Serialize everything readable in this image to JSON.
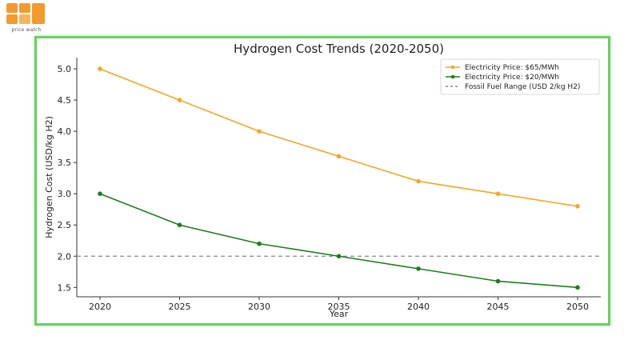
{
  "logo": {
    "text": "price watch",
    "color": "#f39a2e"
  },
  "chart_data": {
    "type": "line",
    "title": "Hydrogen Cost Trends (2020-2050)",
    "xlabel": "Year",
    "ylabel": "Hydrogen Cost (USD/kg H2)",
    "x": [
      2020,
      2025,
      2030,
      2035,
      2040,
      2045,
      2050
    ],
    "x_ticks": [
      "2020",
      "2025",
      "2030",
      "2035",
      "2040",
      "2045",
      "2050"
    ],
    "y_ticks": [
      "1.5",
      "2.0",
      "2.5",
      "3.0",
      "3.5",
      "4.0",
      "4.5",
      "5.0"
    ],
    "ylim": [
      1.35,
      5.18
    ],
    "series": [
      {
        "name": "Electricity Price: $65/MWh",
        "color": "#f5a623",
        "marker": "circle",
        "values": [
          5.0,
          4.5,
          4.0,
          3.6,
          3.2,
          3.0,
          2.8
        ]
      },
      {
        "name": "Electricity Price: $20/MWh",
        "color": "#1e7d1e",
        "marker": "circle",
        "values": [
          3.0,
          2.5,
          2.2,
          2.0,
          1.8,
          1.6,
          1.5
        ]
      }
    ],
    "reference_lines": [
      {
        "name": "Fossil Fuel Range (USD 2/kg H2)",
        "y": 2.0,
        "style": "dashed",
        "color": "#888888"
      }
    ],
    "grid": false,
    "legend_position": "top-right"
  }
}
